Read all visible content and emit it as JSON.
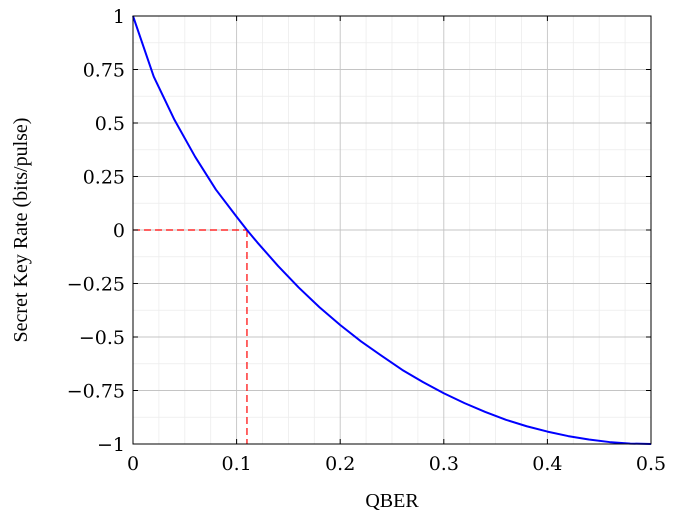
{
  "chart_data": {
    "type": "line",
    "title": "",
    "xlabel": "QBER",
    "ylabel": "Secret Key Rate (bits/pulse)",
    "xlim": [
      0,
      0.5
    ],
    "ylim": [
      -1,
      1
    ],
    "x_ticks": [
      0,
      0.1,
      0.2,
      0.3,
      0.4,
      0.5
    ],
    "x_tick_labels": [
      "0",
      "0.1",
      "0.2",
      "0.3",
      "0.4",
      "0.5"
    ],
    "y_ticks": [
      -1,
      -0.75,
      -0.5,
      -0.25,
      0,
      0.25,
      0.5,
      0.75,
      1
    ],
    "y_tick_labels": [
      "−1",
      "−0.75",
      "−0.5",
      "−0.25",
      "0",
      "0.25",
      "0.5",
      "0.75",
      "1"
    ],
    "grid": true,
    "minor_grid": true,
    "legend": "none",
    "series": [
      {
        "color": "#0000ff",
        "x": [
          0,
          0.02,
          0.04,
          0.06,
          0.08,
          0.1,
          0.11,
          0.12,
          0.14,
          0.16,
          0.18,
          0.2,
          0.22,
          0.24,
          0.26,
          0.28,
          0.3,
          0.32,
          0.34,
          0.36,
          0.38,
          0.4,
          0.42,
          0.44,
          0.46,
          0.48,
          0.5
        ],
        "y": [
          1,
          0.717,
          0.515,
          0.342,
          0.189,
          0.062,
          0.0,
          -0.058,
          -0.168,
          -0.269,
          -0.361,
          -0.444,
          -0.52,
          -0.588,
          -0.654,
          -0.711,
          -0.763,
          -0.809,
          -0.85,
          -0.887,
          -0.917,
          -0.942,
          -0.963,
          -0.979,
          -0.991,
          -0.998,
          -1.0
        ]
      }
    ],
    "annotations": [
      {
        "type": "threshold",
        "color": "#ff0000",
        "style": "dashed",
        "x": 0.11,
        "y": 0
      }
    ]
  }
}
